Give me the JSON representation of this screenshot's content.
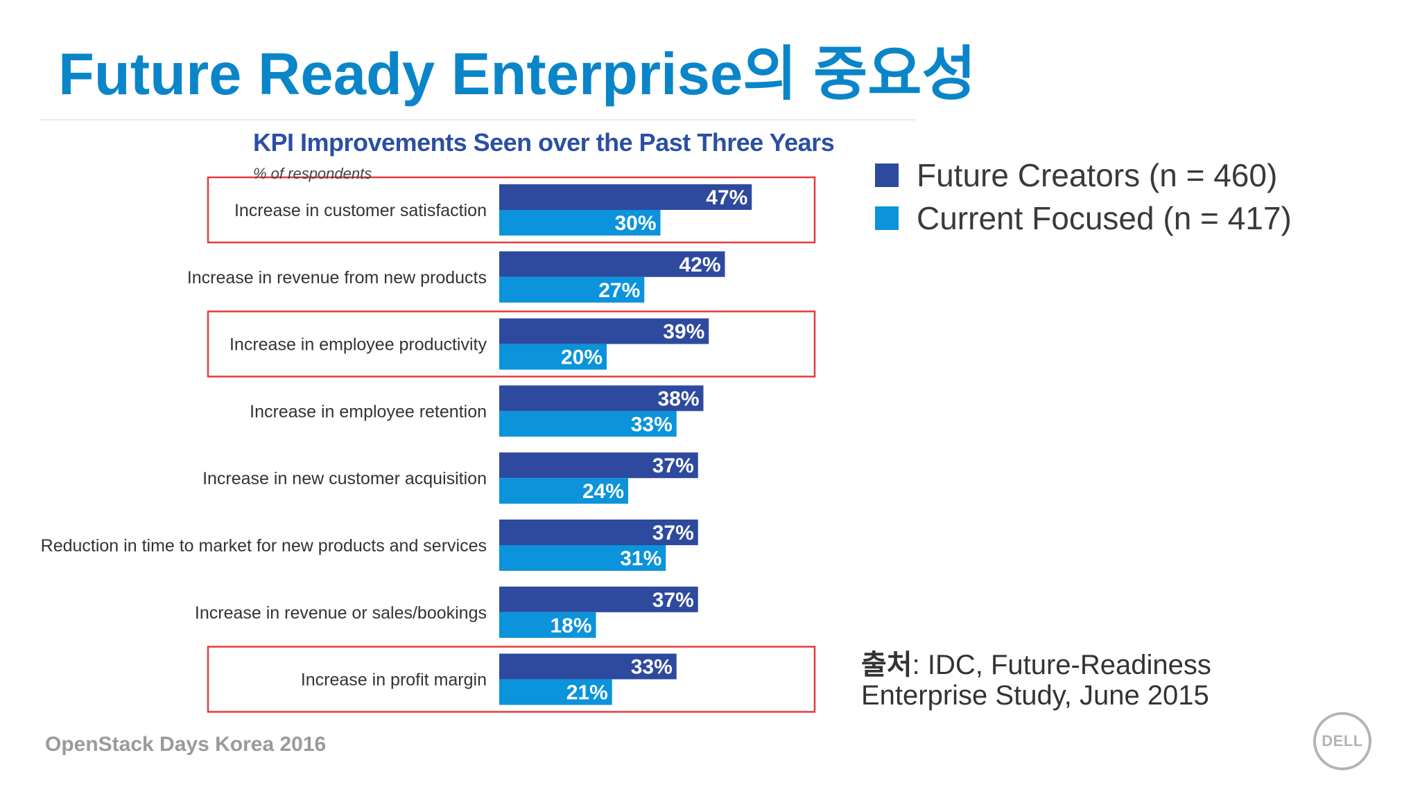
{
  "slide": {
    "title": "Future Ready Enterprise의 중요성",
    "footer": "OpenStack Days Korea 2016",
    "logo_text": "DELL",
    "source_prefix": "출처",
    "source_line1": ": IDC, Future-Readiness",
    "source_line2": "Enterprise Study, June 2015"
  },
  "legend": [
    {
      "label": "Future Creators (n = 460)",
      "color": "#2e4a9e"
    },
    {
      "label": "Current Focused (n = 417)",
      "color": "#0b93dc"
    }
  ],
  "colors": {
    "title": "#0a85c9",
    "chart_title": "#2b4fa2",
    "highlight_box": "#e53a3a"
  },
  "chart_data": {
    "type": "bar",
    "orientation": "horizontal",
    "title": "KPI Improvements Seen over the Past Three Years",
    "subtitle": "% of respondents",
    "categories": [
      "Increase in customer satisfaction",
      "Increase in revenue from new products",
      "Increase in employee productivity",
      "Increase in employee retention",
      "Increase in new customer acquisition",
      "Reduction in time to market for new products and services",
      "Increase in revenue or sales/bookings",
      "Increase in profit margin"
    ],
    "series": [
      {
        "name": "Future Creators (n = 460)",
        "values": [
          47,
          42,
          39,
          38,
          37,
          37,
          37,
          33
        ],
        "color": "#2e4a9e"
      },
      {
        "name": "Current Focused (n = 417)",
        "values": [
          30,
          27,
          20,
          33,
          24,
          31,
          18,
          21
        ],
        "color": "#0b93dc"
      }
    ],
    "value_suffix": "%",
    "highlighted_categories": [
      "Increase in customer satisfaction",
      "Increase in employee productivity",
      "Increase in profit margin"
    ],
    "legend_position": "right",
    "grid": false
  }
}
